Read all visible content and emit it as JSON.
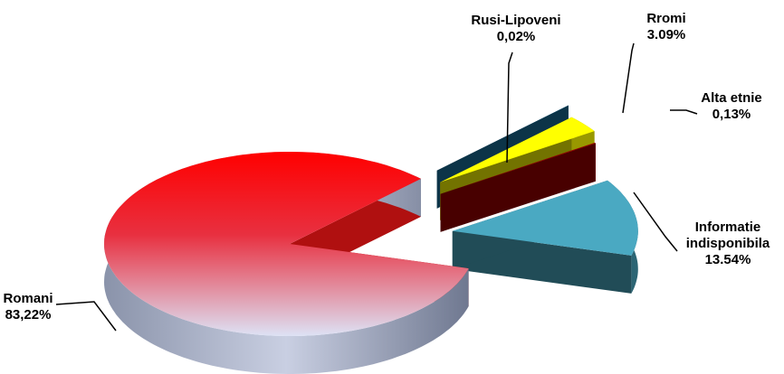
{
  "chart_data": {
    "type": "pie3d",
    "categories": [
      "Romani",
      "Informatie indisponibila",
      "Alta etnie",
      "Rromi",
      "Rusi-Lipoveni"
    ],
    "values": [
      83.22,
      13.54,
      0.13,
      3.09,
      0.02
    ],
    "value_labels": [
      "83,22%",
      "13.54%",
      "0,13%",
      "3.09%",
      "0,02%"
    ],
    "colors": [
      "#ee1111",
      "#4aa9c2",
      "#a00000",
      "#ffff00",
      "#1a73a0"
    ]
  }
}
